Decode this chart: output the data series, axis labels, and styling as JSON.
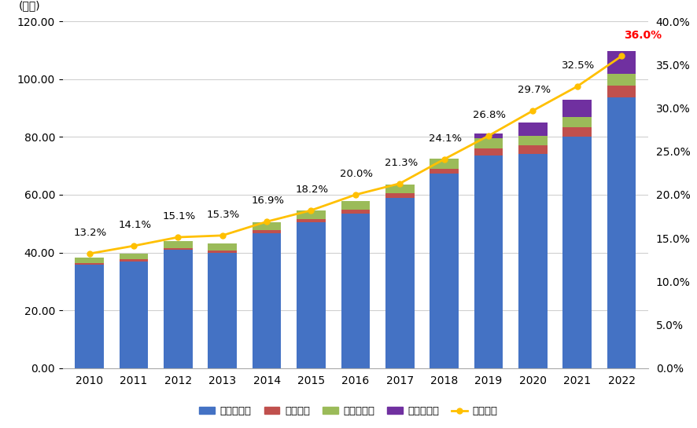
{
  "years": [
    2010,
    2011,
    2012,
    2013,
    2014,
    2015,
    2016,
    2017,
    2018,
    2019,
    2020,
    2021,
    2022
  ],
  "credit": [
    35.8,
    37.0,
    40.9,
    40.0,
    46.8,
    50.6,
    53.6,
    59.0,
    67.2,
    73.5,
    74.0,
    80.0,
    93.8
  ],
  "debit": [
    0.5,
    0.6,
    0.7,
    0.8,
    0.9,
    1.1,
    1.3,
    1.5,
    1.8,
    2.4,
    3.0,
    3.5,
    4.0
  ],
  "emoney": [
    1.9,
    2.1,
    2.3,
    2.4,
    2.7,
    2.8,
    3.0,
    3.1,
    3.5,
    3.8,
    3.5,
    3.5,
    4.0
  ],
  "code": [
    0.0,
    0.0,
    0.0,
    0.0,
    0.0,
    0.0,
    0.0,
    0.0,
    0.0,
    1.5,
    4.5,
    6.0,
    8.0
  ],
  "ratio": [
    13.2,
    14.1,
    15.1,
    15.3,
    16.9,
    18.2,
    20.0,
    21.3,
    24.1,
    26.8,
    29.7,
    32.5,
    36.0
  ],
  "color_credit": "#4472c4",
  "color_debit": "#c0504d",
  "color_emoney": "#9bbb59",
  "color_code": "#7030a0",
  "color_ratio": "#ffc000",
  "bar_width": 0.65,
  "ylim_left": [
    0,
    120
  ],
  "ylim_right": [
    0,
    40
  ],
  "yticks_left": [
    0,
    20,
    40,
    60,
    80,
    100,
    120
  ],
  "yticks_right": [
    0.0,
    5.0,
    10.0,
    15.0,
    20.0,
    25.0,
    30.0,
    35.0,
    40.0
  ],
  "legend_labels": [
    "クレジット",
    "デビット",
    "電子マネー",
    "コード決済",
    "決済比率"
  ],
  "ylabel_left": "(兆円)",
  "bg_color": "#ffffff",
  "grid_color": "#d0d0d0",
  "label_offsets": [
    1.8,
    1.8,
    1.8,
    1.8,
    1.8,
    1.8,
    1.8,
    1.8,
    1.8,
    1.8,
    1.8,
    1.8,
    1.8
  ],
  "label_x_offsets": [
    -0.35,
    -0.35,
    -0.35,
    -0.35,
    -0.35,
    -0.35,
    -0.35,
    -0.35,
    -0.35,
    -0.35,
    -0.35,
    -0.35,
    0.05
  ]
}
